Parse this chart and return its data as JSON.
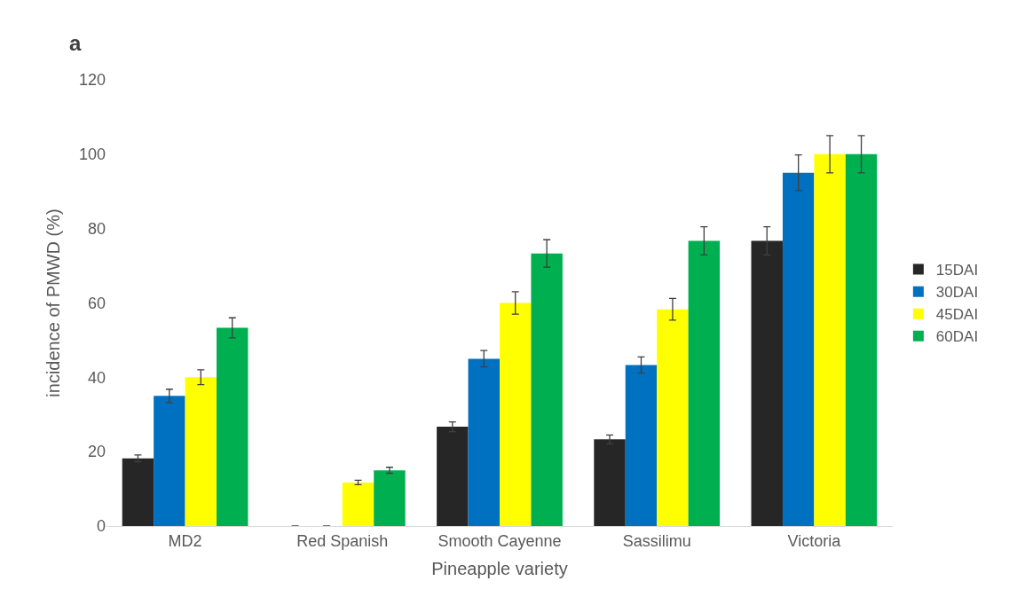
{
  "chart_data": {
    "type": "bar",
    "title": "a",
    "xlabel": "Pineapple variety",
    "ylabel": "incidence of PMWD (%)",
    "categories": [
      "MD2",
      "Red Spanish",
      "Smooth Cayenne",
      "Sassilimu",
      "Victoria"
    ],
    "series": [
      {
        "name": "15DAI",
        "color": "#262626",
        "values": [
          18.2,
          0,
          26.7,
          23.3,
          76.7
        ],
        "errors": [
          0.9,
          0,
          1.3,
          1.2,
          3.8
        ]
      },
      {
        "name": "30DAI",
        "color": "#0070c0",
        "values": [
          35,
          0,
          45,
          43.3,
          95
        ],
        "errors": [
          1.8,
          0,
          2.2,
          2.2,
          4.8
        ]
      },
      {
        "name": "45DAI",
        "color": "#ffff00",
        "values": [
          40,
          11.7,
          60,
          58.3,
          100
        ],
        "errors": [
          2,
          0.6,
          3,
          2.9,
          5
        ]
      },
      {
        "name": "60DAI",
        "color": "#00b050",
        "values": [
          53.3,
          15,
          73.3,
          76.7,
          100
        ],
        "errors": [
          2.7,
          0.8,
          3.7,
          3.8,
          5
        ]
      }
    ],
    "ylim": [
      0,
      120
    ],
    "yticks": [
      0,
      20,
      40,
      60,
      80,
      100,
      120
    ],
    "legend": "right"
  }
}
